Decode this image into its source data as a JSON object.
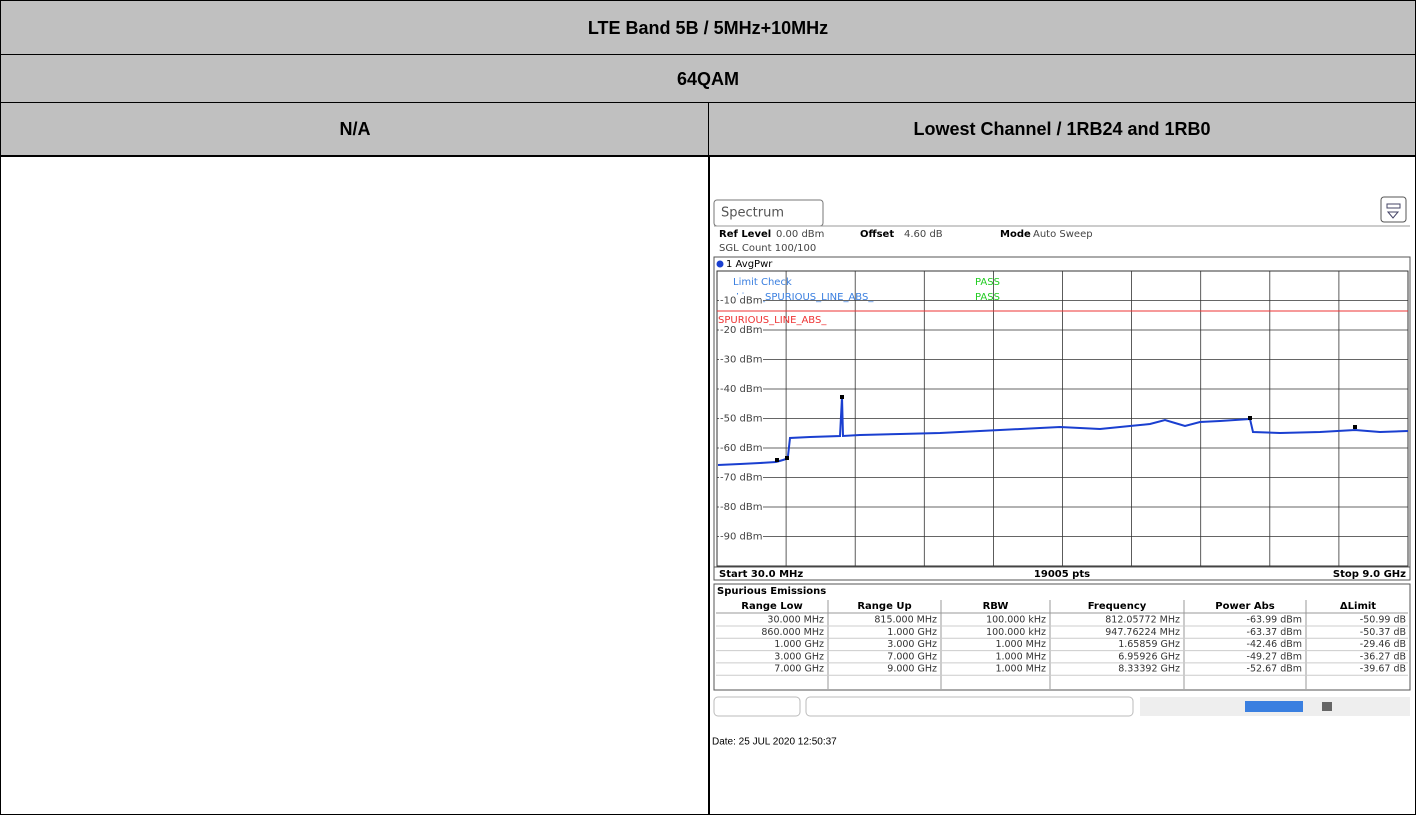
{
  "table": {
    "rows": [
      [
        "LTE Band 5B / 5MHz+10MHz"
      ],
      [
        "64QAM"
      ],
      [
        "N/A",
        "Lowest Channel / 1RB24 and 1RB0"
      ]
    ]
  },
  "screenshot": {
    "tab": "Spectrum",
    "ref_level_label": "Ref Level",
    "ref_level": "0.00 dBm",
    "offset_label": "Offset",
    "offset": "4.60 dB",
    "mode_label": "Mode",
    "mode": "Auto Sweep",
    "sgl_count": "SGL Count 100/100",
    "trace_label": "1 AvgPwr",
    "limit_check": "Limit Check",
    "limit_check_result": "PASS",
    "line": "Line _SPURIOUS_LINE_ABS_",
    "line_result": "PASS",
    "limit_line_label": "SPURIOUS_LINE_ABS_",
    "y_labels": [
      "-10 dBm",
      "-20 dBm",
      "-30 dBm",
      "-40 dBm",
      "-50 dBm",
      "-60 dBm",
      "-70 dBm",
      "-80 dBm",
      "-90 dBm"
    ],
    "start": "Start 30.0 MHz",
    "points": "19005 pts",
    "stop": "Stop 9.0 GHz",
    "emissions": {
      "title": "Spurious Emissions",
      "columns": [
        "Range Low",
        "Range Up",
        "RBW",
        "Frequency",
        "Power Abs",
        "ΔLimit"
      ],
      "rows": [
        [
          "30.000 MHz",
          "815.000 MHz",
          "100.000 kHz",
          "812.05772 MHz",
          "-63.99 dBm",
          "-50.99 dB"
        ],
        [
          "860.000 MHz",
          "1.000 GHz",
          "100.000 kHz",
          "947.76224 MHz",
          "-63.37 dBm",
          "-50.37 dB"
        ],
        [
          "1.000 GHz",
          "3.000 GHz",
          "1.000 MHz",
          "1.65859 GHz",
          "-42.46 dBm",
          "-29.46 dB"
        ],
        [
          "3.000 GHz",
          "7.000 GHz",
          "1.000 MHz",
          "6.95926 GHz",
          "-49.27 dBm",
          "-36.27 dB"
        ],
        [
          "7.000 GHz",
          "9.000 GHz",
          "1.000 MHz",
          "8.33392 GHz",
          "-52.67 dBm",
          "-39.67 dB"
        ]
      ]
    }
  },
  "date": "Date: 25 JUL 2020 12:50:37"
}
